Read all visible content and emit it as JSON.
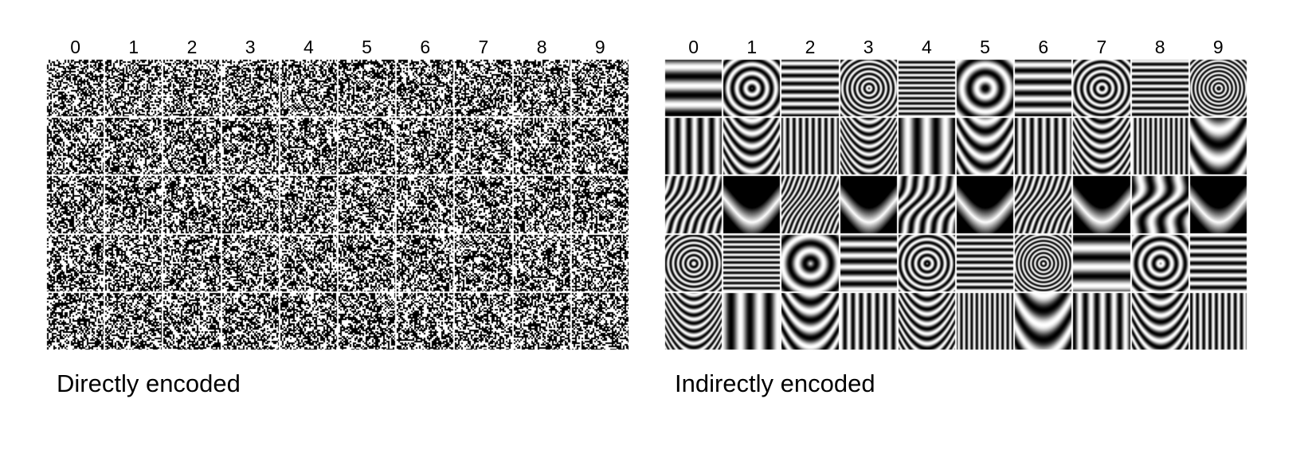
{
  "panels": [
    {
      "id": "direct",
      "caption": "Directly encoded",
      "column_labels": [
        "0",
        "1",
        "2",
        "3",
        "4",
        "5",
        "6",
        "7",
        "8",
        "9"
      ],
      "rows": 5,
      "tile_style": "noise"
    },
    {
      "id": "indirect",
      "caption": "Indirectly encoded",
      "column_labels": [
        "0",
        "1",
        "2",
        "3",
        "4",
        "5",
        "6",
        "7",
        "8",
        "9"
      ],
      "rows": 5,
      "tile_style": "pattern"
    }
  ],
  "colors": {
    "background": "#ffffff",
    "ink": "#000000",
    "tile_gap": "#ffffff"
  }
}
